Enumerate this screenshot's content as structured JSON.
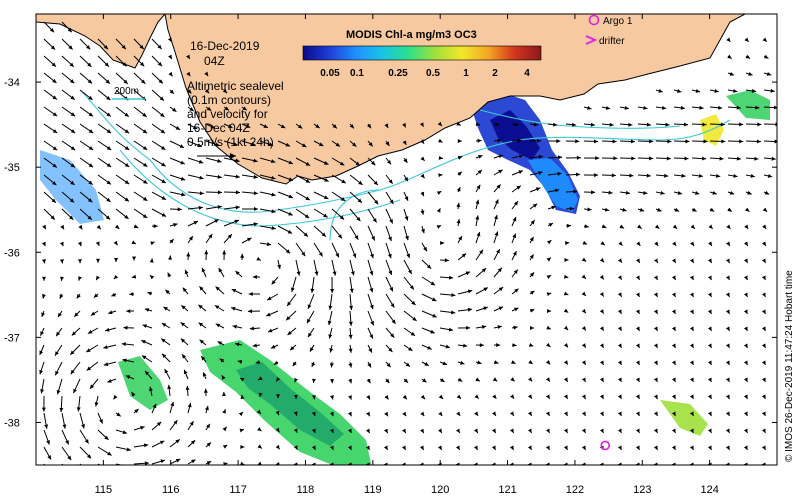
{
  "map": {
    "date_line1": "16-Dec-2019",
    "date_line2": "04Z",
    "contour_label": "200m",
    "desc_lines": [
      "Altimetric sealevel",
      "(0.1m contours)",
      "and velocity for",
      "16-Dec 04Z",
      "0.5m/s (1kt 24h)"
    ],
    "credit": "© IMOS 26-Dec-2019 11:47:24 Hobart time"
  },
  "colorbar": {
    "title": "MODIS Chl-a mg/m3 OC3",
    "labels": [
      "0.05",
      "0.1",
      "0.25",
      "0.5",
      "1",
      "2",
      "4"
    ],
    "colors": [
      "#0a0a8c",
      "#1f3fd6",
      "#1e90ff",
      "#19c3e6",
      "#2ee08a",
      "#9fe03a",
      "#f2e82a",
      "#f5a623",
      "#d2351e",
      "#8b1a1a"
    ]
  },
  "legend": {
    "argo_label": "Argo 1",
    "drifter_label": "drifter",
    "argo_color": "#e020e0",
    "drifter_color": "#e020e0"
  },
  "axes": {
    "x_ticks": [
      "115",
      "116",
      "117",
      "118",
      "119",
      "120",
      "121",
      "122",
      "123",
      "124"
    ],
    "y_ticks": [
      "-34",
      "-35",
      "-36",
      "-37",
      "-38"
    ],
    "lon_range": [
      114.0,
      125.0
    ],
    "lat_range": [
      -33.2,
      -38.5
    ]
  },
  "colors": {
    "land": "#f7c9a0",
    "coast": "#000000",
    "contour": "#3ec8d8",
    "arrow": "#000000"
  },
  "features": {
    "argo_position": [
      122.45,
      -38.27
    ],
    "eddies": [
      {
        "type": "anticyclonic",
        "center": [
          117.5,
          -35.95
        ]
      },
      {
        "type": "cyclonic",
        "center": [
          119.9,
          -35.95
        ]
      },
      {
        "type": "cyclonic",
        "center": [
          115.2,
          -37.8
        ]
      }
    ]
  }
}
